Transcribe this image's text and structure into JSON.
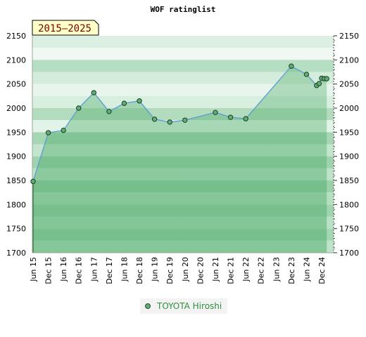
{
  "chart_data": {
    "type": "area",
    "title": "WOF ratinglist",
    "badge": "2015–2025",
    "xlabel": "",
    "ylabel": "",
    "ylim": [
      1700,
      2150
    ],
    "y_ticks": [
      1700,
      1750,
      1800,
      1850,
      1900,
      1950,
      2000,
      2050,
      2100,
      2150
    ],
    "x_ticks": [
      "Jun 15",
      "Dec 15",
      "Jun 16",
      "Dec 16",
      "Jun 17",
      "Dec 17",
      "Jun 18",
      "Dec 18",
      "Jun 19",
      "Dec 19",
      "Jun 20",
      "Dec 20",
      "Jun 21",
      "Dec 21",
      "Jun 22",
      "Dec 22",
      "Jun 23",
      "Dec 23",
      "Jun 24",
      "Dec 24"
    ],
    "grid": true,
    "legend_position": "bottom",
    "series": [
      {
        "name": "TOYOTA Hiroshi",
        "color": "#5fae78",
        "points": [
          {
            "x": "2015-06",
            "y": 1848
          },
          {
            "x": "2015-12",
            "y": 1949
          },
          {
            "x": "2016-06",
            "y": 1954
          },
          {
            "x": "2016-12",
            "y": 2000
          },
          {
            "x": "2017-06",
            "y": 2032
          },
          {
            "x": "2017-12",
            "y": 1993
          },
          {
            "x": "2018-06",
            "y": 2010
          },
          {
            "x": "2018-12",
            "y": 2015
          },
          {
            "x": "2019-06",
            "y": 1977
          },
          {
            "x": "2019-12",
            "y": 1971
          },
          {
            "x": "2020-06",
            "y": 1975
          },
          {
            "x": "2021-06",
            "y": 1991
          },
          {
            "x": "2021-12",
            "y": 1981
          },
          {
            "x": "2022-06",
            "y": 1978
          },
          {
            "x": "2023-12",
            "y": 2087
          },
          {
            "x": "2024-06",
            "y": 2070
          },
          {
            "x": "2024-10",
            "y": 2047
          },
          {
            "x": "2024-11",
            "y": 2051
          },
          {
            "x": "2024-12",
            "y": 2062
          },
          {
            "x": "2025-01",
            "y": 2061
          },
          {
            "x": "2025-02",
            "y": 2061
          }
        ]
      }
    ]
  }
}
